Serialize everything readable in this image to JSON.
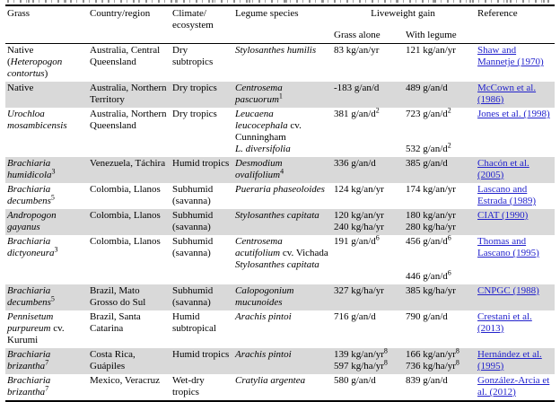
{
  "colors": {
    "link": "#2222cc",
    "row_shade": "#d9d9d9",
    "border": "#000000",
    "text": "#000000",
    "background": "#ffffff"
  },
  "table": {
    "header": {
      "grass": "Grass",
      "country": "Country/region",
      "climate": "Climate/\necosystem",
      "legume": "Legume species",
      "group": "Liveweight gain",
      "sub_grass_alone": "Grass alone",
      "sub_with_legume": "With legume",
      "reference": "Reference"
    },
    "rows": [
      {
        "grass": "Native\n(*Heteropogon contortus*)",
        "country": "Australia, Central Queensland",
        "climate": "Dry subtropics",
        "legume": "*Stylosanthes humilis*",
        "grass_alone": "83 kg/an/yr",
        "with_legume": "121 kg/an/yr",
        "reference": "Shaw and Mannetje (1970)"
      },
      {
        "grass": "Native",
        "country": "Australia, Northern Territory",
        "climate": "Dry tropics",
        "legume": "*Centrosema pascuorum*^{1}",
        "grass_alone": "-183 g/an/d",
        "with_legume": "489 g/an/d",
        "reference": "McCown et al. (1986)"
      },
      {
        "grass": "*Urochloa mosambicensis*",
        "country": "Australia, Northern Queensland",
        "climate": "Dry tropics",
        "legume": "*Leucaena leucocephala* cv. Cunningham\n*L. diversifolia*",
        "grass_alone": "381 g/an/d^{2}",
        "with_legume": "723 g/an/d^{2}\n\n\n532 g/an/d^{2}",
        "reference": "Jones et al. (1998)"
      },
      {
        "grass": "*Brachiaria humidicola*^{3}",
        "country": "Venezuela, Táchira",
        "climate": "Humid tropics",
        "legume": "*Desmodium ovalifolium*^{4}",
        "grass_alone": "336 g/an/d",
        "with_legume": "385 g/an/d",
        "reference": "Chacón et al. (2005)"
      },
      {
        "grass": "*Brachiaria decumbens*^{5}",
        "country": "Colombia, Llanos",
        "climate": "Subhumid (savanna)",
        "legume": "*Pueraria phaseoloides*",
        "grass_alone": "124 kg/an/yr",
        "with_legume": "174 kg/an/yr",
        "reference": "Lascano and Estrada (1989)"
      },
      {
        "grass": "*Andropogon gayanus*",
        "country": "Colombia, Llanos",
        "climate": "Subhumid (savanna)",
        "legume": "*Stylosanthes capitata*",
        "grass_alone": "120 kg/an/yr\n240 kg/ha/yr",
        "with_legume": "180 kg/an/yr\n280 kg/ha/yr",
        "reference": "CIAT (1990)"
      },
      {
        "grass": "*Brachiaria dictyoneura*^{3}",
        "country": "Colombia, Llanos",
        "climate": "Subhumid (savanna)",
        "legume": "*Centrosema acutifolium* cv. Vichada\n*Stylosanthes capitata*",
        "grass_alone": "191 g/an/d^{6}",
        "with_legume": "456 g/an/d^{6}\n\n\n446 g/an/d^{6}",
        "reference": "Thomas and Lascano (1995)"
      },
      {
        "grass": "*Brachiaria decumbens*^{5}",
        "country": "Brazil, Mato Grosso do Sul",
        "climate": "Subhumid (savanna)",
        "legume": "*Calopogonium mucunoides*",
        "grass_alone": "327 kg/ha/yr",
        "with_legume": "385 kg/ha/yr",
        "reference": "CNPGC (1988)"
      },
      {
        "grass": "*Pennisetum purpureum* cv. Kurumi",
        "country": "Brazil, Santa Catarina",
        "climate": "Humid subtropical",
        "legume": "*Arachis pintoi*",
        "grass_alone": "716 g/an/d",
        "with_legume": "790 g/an/d",
        "reference": "Crestani et al. (2013)"
      },
      {
        "grass": "*Brachiaria brizantha*^{7}",
        "country": "Costa Rica, Guápiles",
        "climate": "Humid tropics",
        "legume": "*Arachis pintoi*",
        "grass_alone": "139 kg/an/yr^{8}\n597 kg/ha/yr^{8}",
        "with_legume": "166 kg/an/yr^{8}\n736 kg/ha/yr^{8}",
        "reference": "Hernández et al. (1995)"
      },
      {
        "grass": "*Brachiaria brizantha*^{7}",
        "country": "Mexico, Veracruz",
        "climate": "Wet-dry tropics",
        "legume": "*Cratylia argentea*",
        "grass_alone": "580 g/an/d",
        "with_legume": "839 g/an/d",
        "reference": "González-Arcia et al. (2012)"
      }
    ]
  }
}
